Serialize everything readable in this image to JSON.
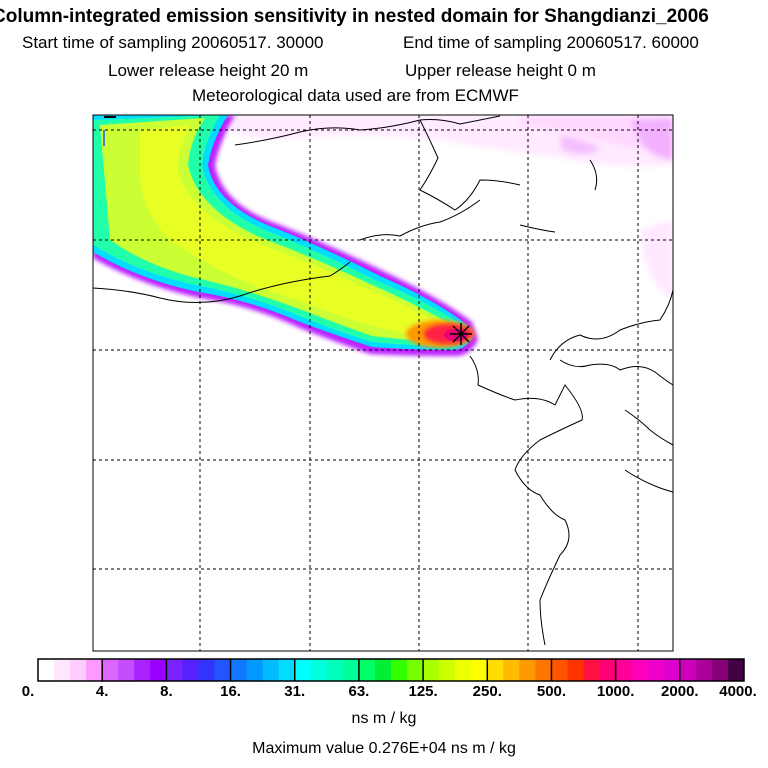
{
  "header": {
    "title": "Column-integrated emission sensitivity in nested domain for Shangdianzi_2006",
    "start_time": "Start time of sampling 20060517. 30000",
    "end_time": "End time of sampling 20060517. 60000",
    "lower_release": "Lower release height   20 m",
    "upper_release": "Upper release height    0 m",
    "met_data": "Meteorological data used are from ECMWF"
  },
  "map": {
    "receptor_marker": "Shangdianzi receptor",
    "plume_color_core": "#ff1a4a",
    "coastline_color": "#000000",
    "gridline_style": "dashed"
  },
  "colorbar": {
    "tick_labels": [
      "0.",
      "4.",
      "8.",
      "16.",
      "31.",
      "63.",
      "125.",
      "250.",
      "500.",
      "1000.",
      "2000.",
      "4000."
    ],
    "colors": [
      "#ffffff",
      "#ffe6ff",
      "#ffccff",
      "#ff99ff",
      "#dd66ff",
      "#c44dff",
      "#aa22ff",
      "#9900ff",
      "#7722ff",
      "#5522ff",
      "#3333ff",
      "#2255ff",
      "#1177ff",
      "#0099ff",
      "#00bbff",
      "#00ddff",
      "#00ffff",
      "#00ffdd",
      "#00ffbb",
      "#00ff99",
      "#00ff66",
      "#00ee33",
      "#33ff00",
      "#77ff00",
      "#aaff00",
      "#ccff00",
      "#eeff00",
      "#ffff00",
      "#ffdd00",
      "#ffbb00",
      "#ff9900",
      "#ff7700",
      "#ff5500",
      "#ff3300",
      "#ff1144",
      "#ff0077",
      "#ff0099",
      "#ff00bb",
      "#ee00cc",
      "#dd00cc",
      "#cc00bb",
      "#aa0099",
      "#880077",
      "#440044"
    ],
    "units": "ns m / kg",
    "max_value": "Maximum value  0.276E+04 ns m / kg"
  }
}
